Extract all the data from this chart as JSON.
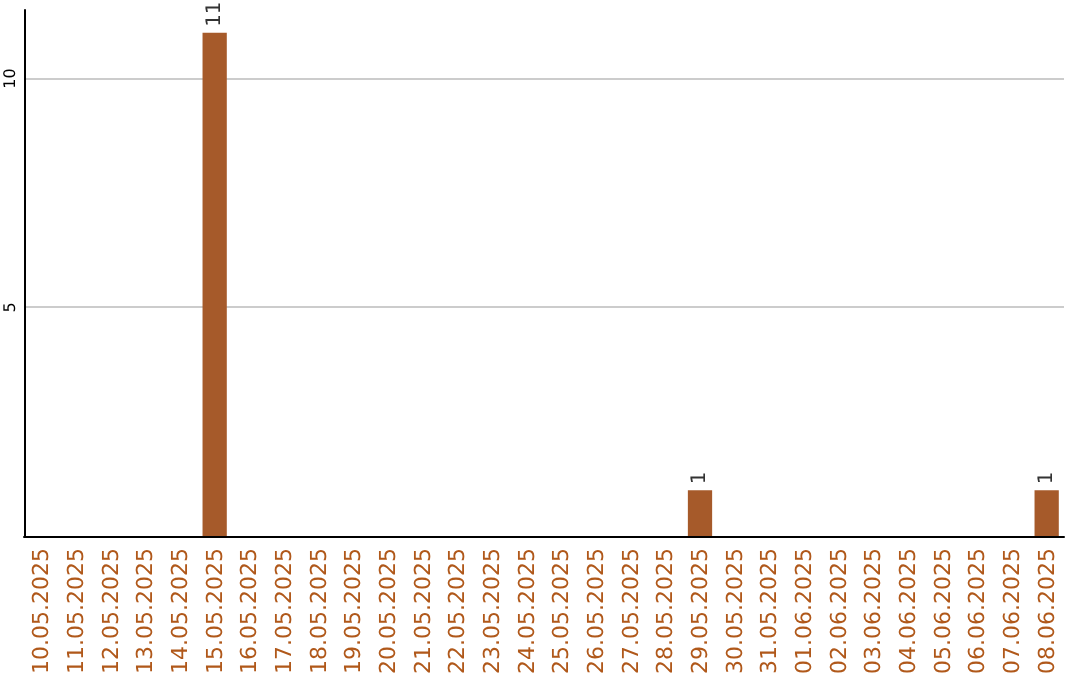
{
  "chart_data": {
    "type": "bar",
    "categories": [
      "10.05.2025",
      "11.05.2025",
      "12.05.2025",
      "13.05.2025",
      "14.05.2025",
      "15.05.2025",
      "16.05.2025",
      "17.05.2025",
      "18.05.2025",
      "19.05.2025",
      "20.05.2025",
      "21.05.2025",
      "22.05.2025",
      "23.05.2025",
      "24.05.2025",
      "25.05.2025",
      "26.05.2025",
      "27.05.2025",
      "28.05.2025",
      "29.05.2025",
      "30.05.2025",
      "31.05.2025",
      "01.06.2025",
      "02.06.2025",
      "03.06.2025",
      "04.06.2025",
      "05.06.2025",
      "06.06.2025",
      "07.06.2025",
      "08.06.2025"
    ],
    "values": [
      0,
      0,
      0,
      0,
      0,
      11,
      0,
      0,
      0,
      0,
      0,
      0,
      0,
      0,
      0,
      0,
      0,
      0,
      0,
      1,
      0,
      0,
      0,
      0,
      0,
      0,
      0,
      0,
      0,
      1
    ],
    "color": "#a65a2a",
    "value_labels": [
      null,
      null,
      null,
      null,
      null,
      "11",
      null,
      null,
      null,
      null,
      null,
      null,
      null,
      null,
      null,
      null,
      null,
      null,
      null,
      "1",
      null,
      null,
      null,
      null,
      null,
      null,
      null,
      null,
      null,
      "1"
    ],
    "ylim": [
      0,
      11.5
    ],
    "yticks": [
      5,
      10
    ],
    "grid": "y"
  }
}
